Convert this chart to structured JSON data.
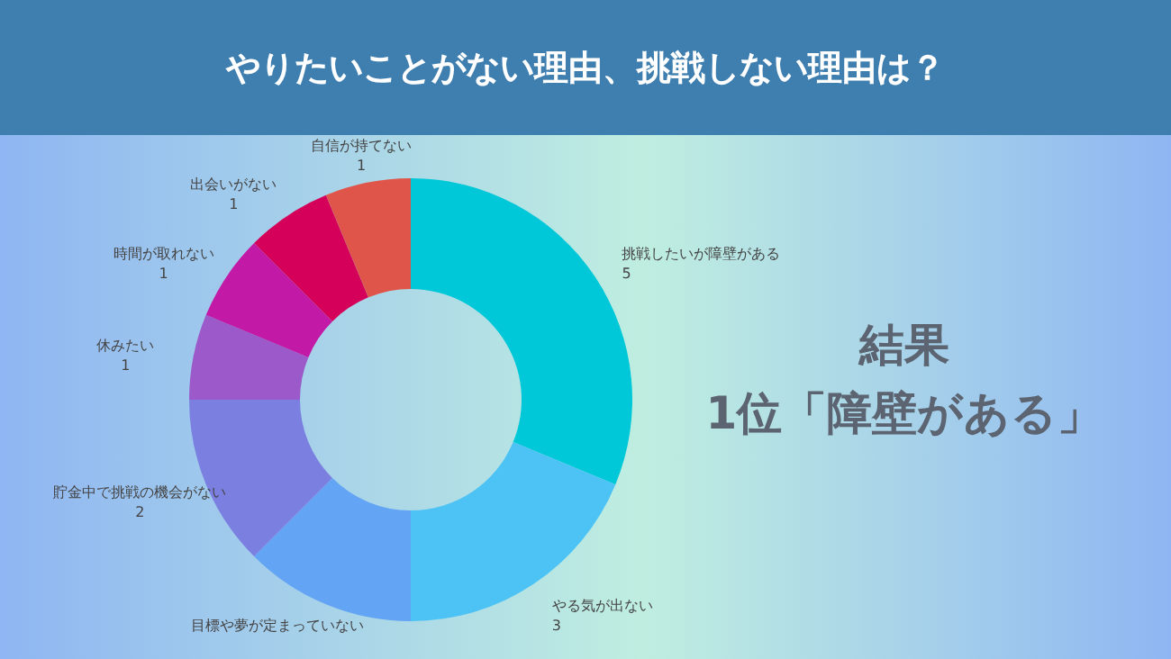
{
  "chart_data": {
    "type": "donut",
    "title": "やりたいことがない理由、挑戦しない理由は？",
    "categories": [
      "挑戦したいが障壁がある",
      "やる気が出ない",
      "目標や夢が定まっていない",
      "貯金中で挑戦の機会がない",
      "休みたい",
      "時間が取れない",
      "出会いがない",
      "自信が持てない"
    ],
    "values": [
      5,
      3,
      2,
      2,
      1,
      1,
      1,
      1
    ],
    "value_labels": [
      "5",
      "3",
      null,
      "2",
      "1",
      "1",
      "1",
      "1"
    ],
    "colors": [
      "#00c8d8",
      "#4dc3f5",
      "#63a4f5",
      "#7b7fe0",
      "#9b59c9",
      "#c21aa6",
      "#d4005a",
      "#e0554a"
    ],
    "annotations": [
      "結果",
      "1位「障壁がある」"
    ]
  }
}
